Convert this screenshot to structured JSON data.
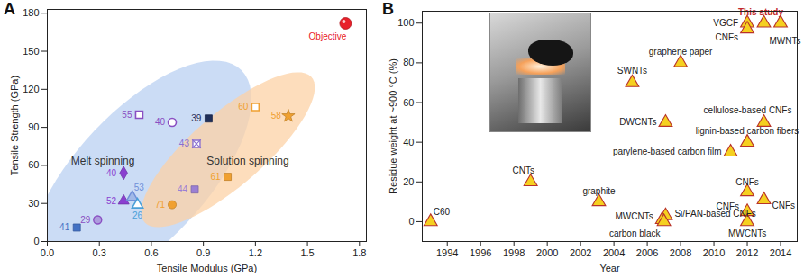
{
  "chart_data": [
    {
      "type": "scatter",
      "title": "A",
      "x_label": "Tensile Modulus (GPa)",
      "y_label": "Tensile Strength (GPa)",
      "xlim": [
        0,
        1.84
      ],
      "ylim": [
        0,
        183
      ],
      "xticks": [
        {
          "value": 0,
          "label": "0.0"
        },
        0.3,
        0.6,
        0.9,
        1.2,
        1.5,
        1.8
      ],
      "yticks": [
        0,
        30,
        60,
        90,
        120,
        150,
        180
      ],
      "grid": false,
      "regions": [
        {
          "name": "Melt spinning",
          "color": "#b9d0f2"
        },
        {
          "name": "Solution spinning",
          "color": "#fcd2a6"
        }
      ],
      "points": [
        {
          "label": "41",
          "x": 0.17,
          "y": 11,
          "color": "#4472c4",
          "marker": "square",
          "region": "Melt spinning"
        },
        {
          "label": "29",
          "x": 0.29,
          "y": 17,
          "color": "#8a4fc2",
          "marker": "half circle",
          "region": "Melt spinning"
        },
        {
          "label": "40",
          "x": 0.44,
          "y": 54,
          "color": "#8a3fd0",
          "marker": "diamond",
          "region": "Melt spinning"
        },
        {
          "label": "52",
          "x": 0.44,
          "y": 32,
          "color": "#8a3fd0",
          "marker": "triangle",
          "region": "Melt spinning"
        },
        {
          "label": "53",
          "x": 0.49,
          "y": 35,
          "color": "#6f8fd8",
          "marker": "half triangle",
          "region": "Melt spinning"
        },
        {
          "label": "26",
          "x": 0.52,
          "y": 29,
          "color": "#4aa0d8",
          "marker": "open triangle",
          "region": "Melt spinning"
        },
        {
          "label": "55",
          "x": 0.53,
          "y": 100,
          "color": "#8a4fc2",
          "marker": "open square",
          "region": "Melt spinning"
        },
        {
          "label": "40",
          "x": 0.72,
          "y": 94,
          "color": "#8a4fc2",
          "marker": "open circle",
          "region": "Melt spinning"
        },
        {
          "label": "71",
          "x": 0.72,
          "y": 29,
          "color": "#f0a030",
          "marker": "circle",
          "region": "Solution spinning"
        },
        {
          "label": "44",
          "x": 0.85,
          "y": 41,
          "color": "#9b7fd4",
          "marker": "square",
          "region": "Melt spinning"
        },
        {
          "label": "43",
          "x": 0.86,
          "y": 77,
          "color": "#8a6fd0",
          "marker": "crossed square",
          "region": "Solution spinning"
        },
        {
          "label": "39",
          "x": 0.93,
          "y": 97,
          "color": "#1f2f5a",
          "marker": "square",
          "region": "Melt spinning"
        },
        {
          "label": "61",
          "x": 1.04,
          "y": 51,
          "color": "#f0a030",
          "marker": "square",
          "region": "Solution spinning"
        },
        {
          "label": "60",
          "x": 1.2,
          "y": 106,
          "color": "#f0a030",
          "marker": "open square",
          "region": "Solution spinning"
        },
        {
          "label": "58",
          "x": 1.39,
          "y": 99,
          "color": "#f0a030",
          "marker": "star",
          "region": "Solution spinning"
        },
        {
          "label": "Objective",
          "x": 1.72,
          "y": 172,
          "color": "#e8202a",
          "marker": "sphere",
          "region": null
        }
      ]
    },
    {
      "type": "scatter",
      "title": "B",
      "x_label": "Year",
      "y_label": "Residue weight at ~900 °C (%)",
      "xlim": [
        1992.5,
        2015
      ],
      "ylim": [
        -10,
        106
      ],
      "xticks": [
        1994,
        1996,
        1998,
        2000,
        2002,
        2004,
        2006,
        2008,
        2010,
        2012,
        2014
      ],
      "yticks": [
        0,
        20,
        40,
        60,
        80,
        100
      ],
      "grid": false,
      "color": "#f5d020",
      "marker": "triangle",
      "points": [
        {
          "label": "C60",
          "x": 1993.0,
          "y": 0
        },
        {
          "label": "CNTs",
          "x": 1999.0,
          "y": 20
        },
        {
          "label": "graphite",
          "x": 2003.1,
          "y": 10
        },
        {
          "label": "SWNTs",
          "x": 2005.1,
          "y": 70
        },
        {
          "label": "DWCNTs",
          "x": 2007.1,
          "y": 50
        },
        {
          "label": "graphene paper",
          "x": 2008.0,
          "y": 80
        },
        {
          "label": "Si/PAN-based CNFs",
          "x": 2007.1,
          "y": 3
        },
        {
          "label": "MWCNTs",
          "x": 2006.9,
          "y": 1
        },
        {
          "label": "carbon black",
          "x": 2007.0,
          "y": 0
        },
        {
          "label": "parylene-based carbon film",
          "x": 2011.0,
          "y": 35
        },
        {
          "label": "lignin-based carbon fibers",
          "x": 2012.0,
          "y": 40
        },
        {
          "label": "cellulose-based CNFs",
          "x": 2013.0,
          "y": 50
        },
        {
          "label": "CNFs",
          "x": 2012.0,
          "y": 15
        },
        {
          "label": "CNFs",
          "x": 2012.0,
          "y": 5
        },
        {
          "label": "CNFs",
          "x": 2013.0,
          "y": 11
        },
        {
          "label": "MWCNTs",
          "x": 2012.0,
          "y": 0
        },
        {
          "label": "VGCF",
          "x": 2012.0,
          "y": 100
        },
        {
          "label": "CNFs",
          "x": 2012.0,
          "y": 97
        },
        {
          "label": "MWNTs",
          "x": 2013.0,
          "y": 100
        },
        {
          "label": "This study",
          "x": 2014.0,
          "y": 100
        }
      ]
    }
  ]
}
